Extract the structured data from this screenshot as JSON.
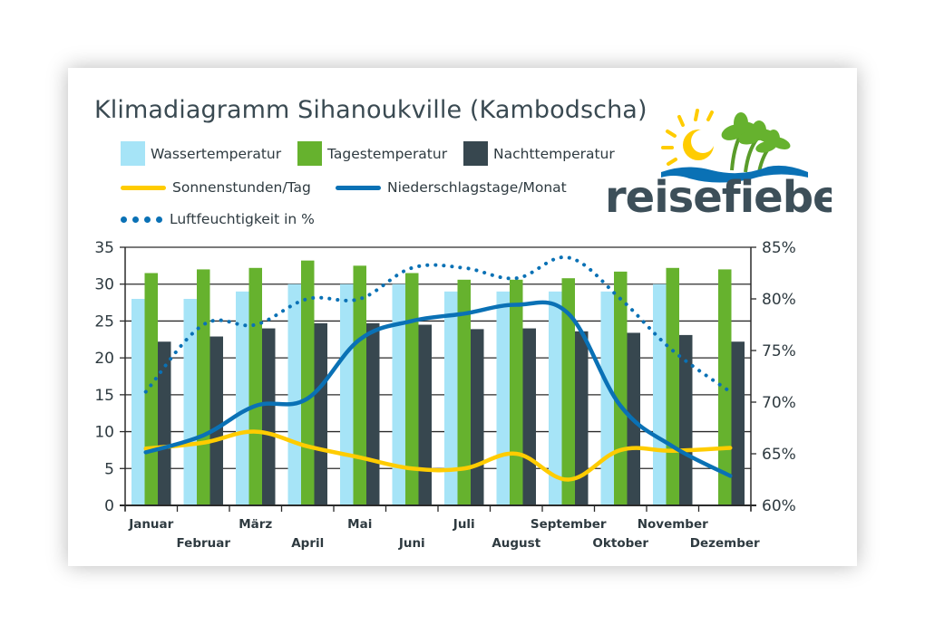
{
  "title": "Klimadiagramm Sihanoukville (Kambodscha)",
  "logo_text": "reisefieber",
  "legend": {
    "water": "Wassertemperatur",
    "day": "Tagestemperatur",
    "night": "Nachttemperatur",
    "sun": "Sonnenstunden/Tag",
    "rain": "Niederschlagstage/Monat",
    "humidity": "Luftfeuchtigkeit in %"
  },
  "colors": {
    "water": "#a6e4f7",
    "day": "#66b22e",
    "night": "#37474f",
    "sun": "#ffcc00",
    "rain": "#0a71b5",
    "humidity": "#0a71b5",
    "text": "#3a4a52"
  },
  "chart_data": {
    "type": "bar",
    "categories": [
      "Januar",
      "Februar",
      "März",
      "April",
      "Mai",
      "Juni",
      "Juli",
      "August",
      "September",
      "Oktober",
      "November",
      "Dezember"
    ],
    "y_left": {
      "ylim": [
        0,
        35
      ],
      "ticks": [
        0,
        5,
        10,
        15,
        20,
        25,
        30,
        35
      ]
    },
    "y_right": {
      "ylim": [
        60,
        85
      ],
      "ticks": [
        "60%",
        "65%",
        "70%",
        "75%",
        "80%",
        "85%"
      ],
      "tick_values": [
        60,
        65,
        70,
        75,
        80,
        85
      ]
    },
    "grid": true,
    "bar_series": [
      {
        "name": "Wassertemperatur",
        "color": "#a6e4f7",
        "values": [
          28,
          28,
          29,
          30,
          30,
          30,
          29,
          29,
          29,
          29,
          30,
          null
        ]
      },
      {
        "name": "Tagestemperatur",
        "color": "#66b22e",
        "values": [
          31.5,
          32,
          32.2,
          33.2,
          32.5,
          31.5,
          30.6,
          30.6,
          30.8,
          31.7,
          32.2,
          32
        ]
      },
      {
        "name": "Nachttemperatur",
        "color": "#37474f",
        "values": [
          22.2,
          22.9,
          24,
          24.7,
          24.7,
          24.5,
          23.9,
          24,
          23.6,
          23.4,
          23.1,
          22.2
        ]
      }
    ],
    "line_series": [
      {
        "name": "Sonnenstunden/Tag",
        "axis": "left",
        "color": "#ffcc00",
        "style": "solid",
        "values": [
          7.7,
          8.5,
          10.0,
          8.0,
          6.5,
          5.0,
          5.0,
          7.0,
          3.5,
          7.5,
          7.4,
          7.8
        ]
      },
      {
        "name": "Niederschlagstage/Monat",
        "axis": "left",
        "color": "#0a71b5",
        "style": "solid",
        "values": [
          7.2,
          9.5,
          13.5,
          14.5,
          22.5,
          25,
          26,
          27.2,
          26,
          13.5,
          8,
          4
        ]
      },
      {
        "name": "Luftfeuchtigkeit in %",
        "axis": "right",
        "color": "#0a71b5",
        "style": "dotted",
        "values": [
          71,
          77.5,
          77.5,
          80,
          80,
          83,
          83,
          82,
          84,
          80,
          75,
          71
        ]
      }
    ]
  }
}
